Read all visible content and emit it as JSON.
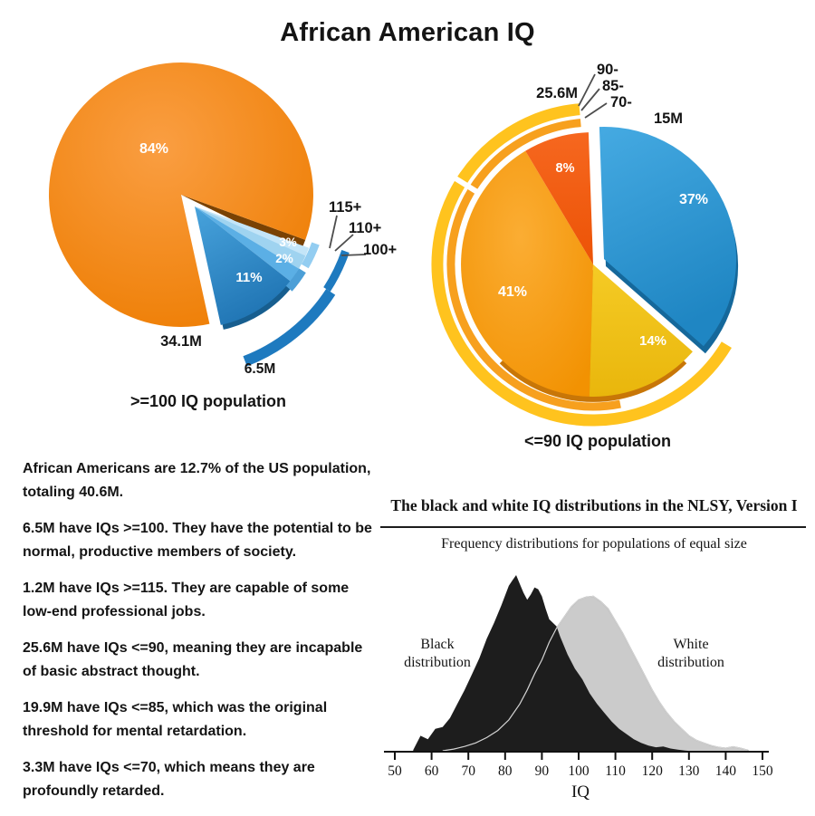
{
  "page_title": "African American IQ",
  "narrative": {
    "paragraphs": [
      "African Americans are 12.7% of the US population, totaling 40.6M.",
      "6.5M have IQs >=100. They have the potential to be normal, productive members of society.",
      "1.2M have IQs >=115. They are capable of some low-end professional jobs.",
      "25.6M have IQs <=90, meaning they are incapable of basic abstract thought.",
      "19.9M have IQs <=85, which was the original threshold for mental retardation.",
      "3.3M have IQs <=70, which means they are profoundly retarded."
    ]
  },
  "chart_data": [
    {
      "id": "pie-ge100",
      "type": "pie",
      "caption": ">=100 IQ population",
      "annotations": {
        "main_total": "34.1M",
        "exploded_total": "6.5M"
      },
      "slices": [
        {
          "label": "84%",
          "value": 84,
          "color": "#F6870F",
          "text_color": "#ffffff"
        },
        {
          "label": "3%",
          "value": 3,
          "color": "#9FD3F0",
          "text_color": "#ffffff",
          "callout": "115+"
        },
        {
          "label": "2%",
          "value": 2,
          "color": "#5BAFE5",
          "text_color": "#ffffff",
          "callout": "110+"
        },
        {
          "label": "11%",
          "value": 11,
          "color": "#2B86C8",
          "text_color": "#ffffff",
          "callout": "100+"
        }
      ]
    },
    {
      "id": "pie-le90",
      "type": "pie",
      "caption": "<=90 IQ population",
      "annotations": {
        "arc_total": "25.6M",
        "exploded_total": "15M"
      },
      "callouts": [
        "90-",
        "85-",
        "70-"
      ],
      "slices": [
        {
          "label": "37%",
          "value": 37,
          "color": "#2D9BD8",
          "text_color": "#ffffff"
        },
        {
          "label": "14%",
          "value": 14,
          "color": "#F0C41C",
          "text_color": "#ffffff"
        },
        {
          "label": "41%",
          "value": 41,
          "color": "#F9A21B",
          "text_color": "#ffffff"
        },
        {
          "label": "8%",
          "value": 8,
          "color": "#F15A10",
          "text_color": "#ffffff"
        }
      ],
      "arc_colors": {
        "outer": "#FFC31E",
        "inner": "#F7A01E"
      }
    },
    {
      "id": "nlsy-distribution",
      "type": "area",
      "title": "The black and white IQ distributions in the NLSY, Version I",
      "subtitle": "Frequency distributions for populations of equal size",
      "xlabel": "IQ",
      "xlim": [
        50,
        150
      ],
      "x_ticks": [
        50,
        60,
        70,
        80,
        90,
        100,
        110,
        120,
        130,
        140,
        150
      ],
      "series": [
        {
          "name": "Black distribution",
          "fill": "#1d1d1d",
          "peak_iq": 83,
          "x": [
            55,
            57,
            59,
            61,
            63,
            65,
            67,
            69,
            71,
            73,
            75,
            77,
            79,
            81,
            82,
            83,
            84,
            85,
            86,
            87,
            88,
            89,
            90,
            91,
            92,
            93,
            94,
            95,
            97,
            99,
            101,
            103,
            105,
            107,
            109,
            111,
            113,
            115,
            117,
            119,
            121,
            123,
            125,
            127,
            129,
            131
          ],
          "y": [
            0.01,
            0.09,
            0.07,
            0.13,
            0.14,
            0.19,
            0.27,
            0.35,
            0.44,
            0.53,
            0.64,
            0.73,
            0.83,
            0.94,
            0.97,
            1.0,
            0.95,
            0.9,
            0.86,
            0.89,
            0.93,
            0.92,
            0.88,
            0.81,
            0.75,
            0.73,
            0.71,
            0.65,
            0.55,
            0.47,
            0.41,
            0.33,
            0.27,
            0.22,
            0.17,
            0.13,
            0.1,
            0.07,
            0.05,
            0.035,
            0.025,
            0.03,
            0.018,
            0.012,
            0.006,
            0.003
          ]
        },
        {
          "name": "White distribution",
          "fill": "#cbcbcb",
          "stroke": "#8f8f8f",
          "peak_iq": 103,
          "x": [
            63,
            66,
            69,
            72,
            75,
            78,
            81,
            84,
            86,
            88,
            90,
            92,
            94,
            96,
            98,
            100,
            102,
            104,
            106,
            108,
            110,
            112,
            114,
            116,
            118,
            120,
            122,
            124,
            126,
            128,
            130,
            132,
            134,
            136,
            138,
            140,
            142,
            144,
            146
          ],
          "y": [
            0.005,
            0.015,
            0.03,
            0.05,
            0.08,
            0.12,
            0.18,
            0.27,
            0.35,
            0.44,
            0.52,
            0.62,
            0.7,
            0.76,
            0.82,
            0.86,
            0.875,
            0.88,
            0.85,
            0.81,
            0.74,
            0.67,
            0.59,
            0.51,
            0.43,
            0.35,
            0.28,
            0.22,
            0.17,
            0.13,
            0.09,
            0.065,
            0.05,
            0.035,
            0.025,
            0.02,
            0.028,
            0.02,
            0.008
          ]
        }
      ]
    }
  ]
}
